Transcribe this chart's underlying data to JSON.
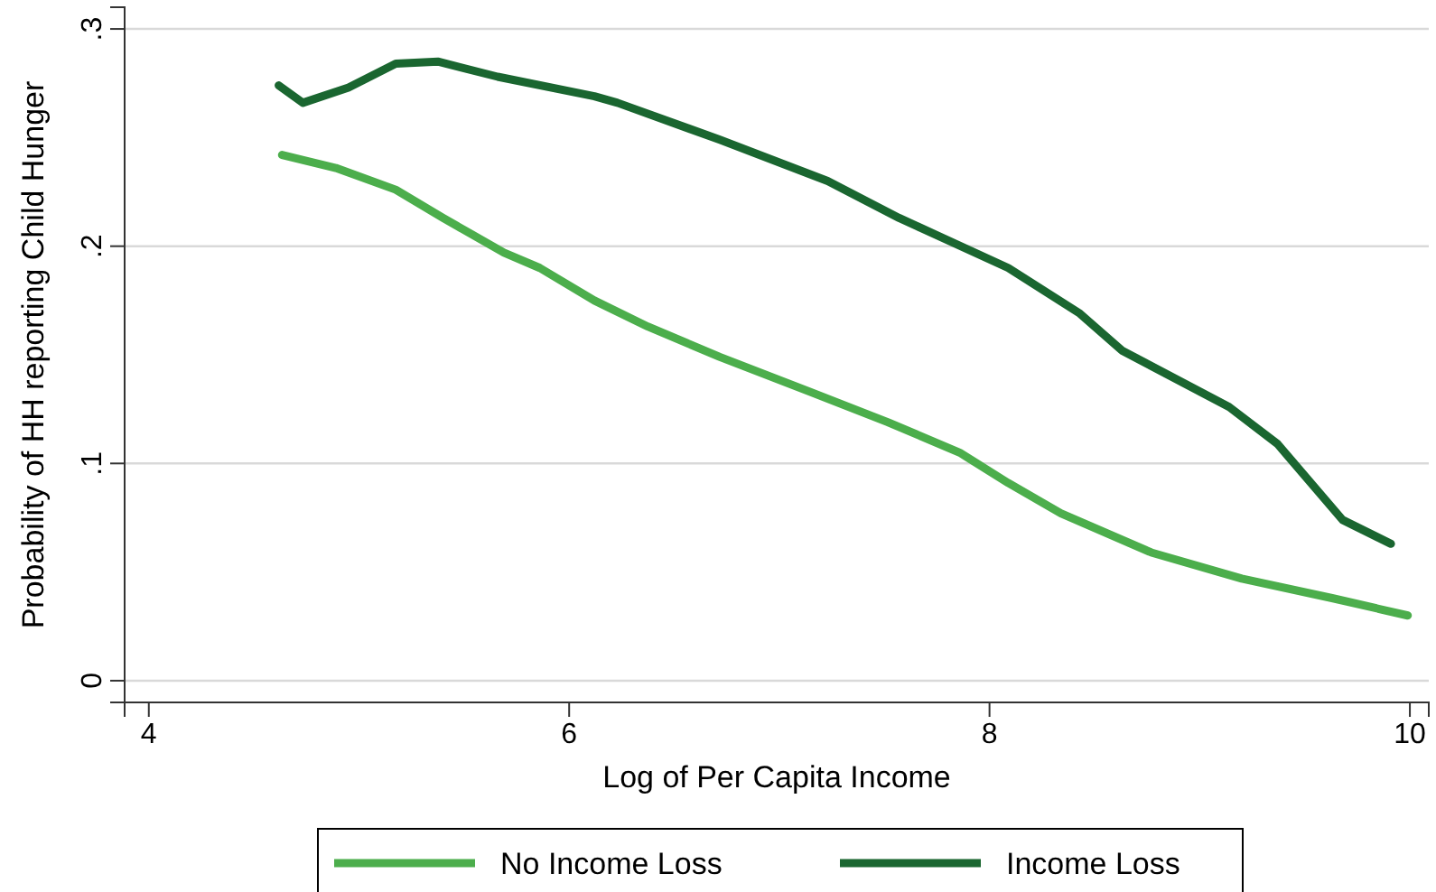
{
  "chart_data": {
    "type": "line",
    "xlabel": "Log of Per Capita Income",
    "ylabel": "Probability of HH reporting Child Hunger",
    "xlim": [
      3.885,
      10.09
    ],
    "xticks": [
      4,
      6,
      8,
      10
    ],
    "ylim": [
      -0.01,
      0.31
    ],
    "yticks": [
      0,
      {
        "value": 0.1,
        "label": ".1"
      },
      {
        "value": 0.2,
        "label": ".2"
      },
      {
        "value": 0.3,
        "label": ".3"
      }
    ],
    "grid": "y",
    "legend": "bottom",
    "marker": "none",
    "line_style": "solid",
    "series": [
      {
        "name": "No Income Loss",
        "color": "#4cae4c",
        "x": [
          4.634,
          4.89,
          5.175,
          5.4,
          5.69,
          5.86,
          6.12,
          6.374,
          6.717,
          7.145,
          7.516,
          7.858,
          8.089,
          8.34,
          8.77,
          9.2,
          9.63,
          9.99
        ],
        "values": [
          0.242,
          0.236,
          0.226,
          0.213,
          0.197,
          0.19,
          0.175,
          0.163,
          0.149,
          0.133,
          0.119,
          0.105,
          0.091,
          0.077,
          0.059,
          0.047,
          0.038,
          0.03
        ]
      },
      {
        "name": "Income Loss",
        "color": "#1a6630",
        "x": [
          4.618,
          4.733,
          4.95,
          5.175,
          5.375,
          5.66,
          6.12,
          6.23,
          6.717,
          7.23,
          7.57,
          8.089,
          8.43,
          8.63,
          9.14,
          9.37,
          9.68,
          9.91
        ],
        "values": [
          0.274,
          0.266,
          0.273,
          0.284,
          0.285,
          0.278,
          0.269,
          0.266,
          0.249,
          0.23,
          0.213,
          0.19,
          0.169,
          0.152,
          0.126,
          0.109,
          0.074,
          0.063
        ]
      }
    ]
  }
}
